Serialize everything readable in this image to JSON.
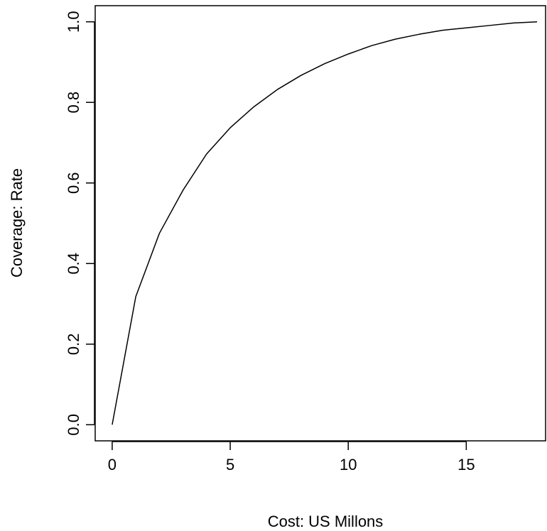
{
  "chart_data": {
    "type": "line",
    "title": "",
    "xlabel": "Cost: US Millons",
    "ylabel": "Coverage: Rate",
    "xlim": [
      -0.72,
      18.36
    ],
    "ylim": [
      -0.04,
      1.04
    ],
    "x_ticks": [
      0,
      5,
      10,
      15
    ],
    "x_tick_labels": [
      "0",
      "5",
      "10",
      "15"
    ],
    "y_ticks": [
      0.0,
      0.2,
      0.4,
      0.6,
      0.8,
      1.0
    ],
    "y_tick_labels": [
      "0.0",
      "0.2",
      "0.4",
      "0.6",
      "0.8",
      "1.0"
    ],
    "grid": false,
    "legend": "none",
    "line_color": "#000000",
    "series": [
      {
        "x": [
          0,
          1,
          2,
          3,
          4,
          5,
          6,
          7,
          8,
          9,
          10,
          11,
          12,
          13,
          14,
          15,
          16,
          17,
          18
        ],
        "y": [
          0.0,
          0.318,
          0.475,
          0.582,
          0.672,
          0.737,
          0.789,
          0.832,
          0.867,
          0.896,
          0.92,
          0.941,
          0.957,
          0.969,
          0.979,
          0.985,
          0.991,
          0.997,
          1.0
        ]
      }
    ]
  }
}
